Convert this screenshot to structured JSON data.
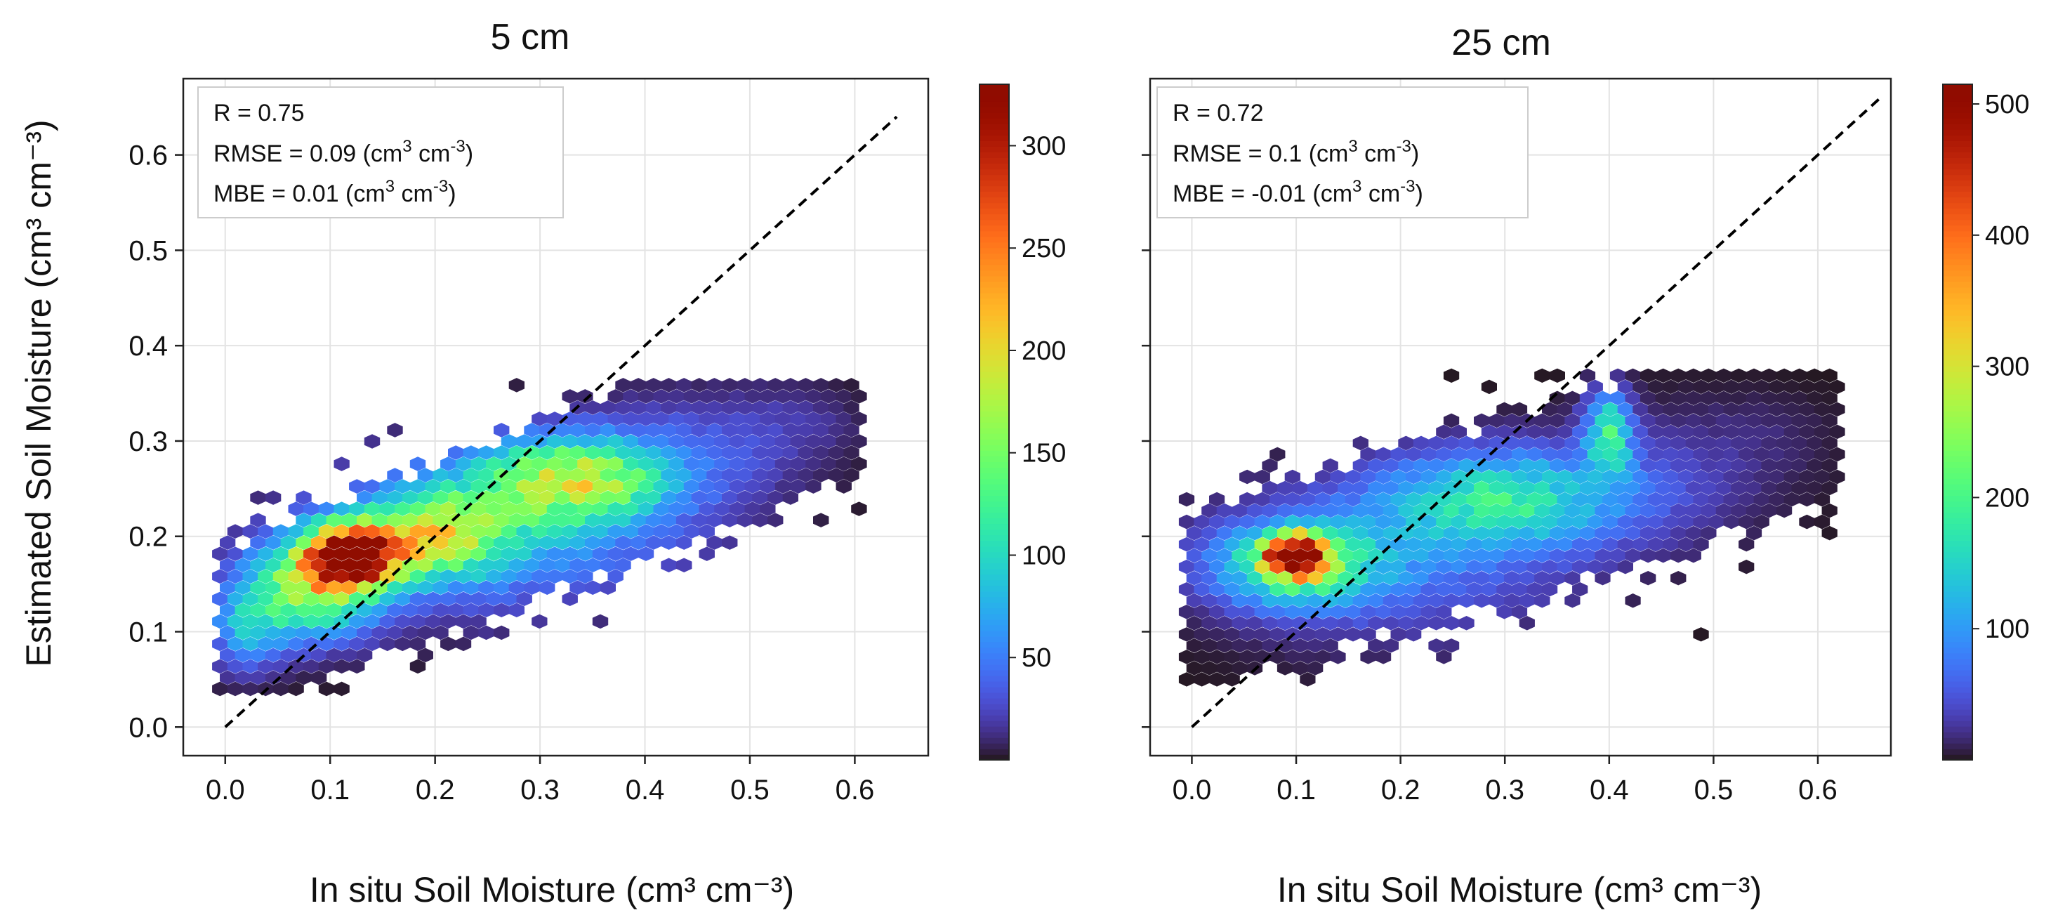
{
  "figure": {
    "ylabel_shared": "Estimated Soil Moisture (cm³ cm⁻³)"
  },
  "chart_data": [
    {
      "type": "heatmap",
      "subtype": "hexbin",
      "title": "5 cm",
      "xlabel": "In situ Soil Moisture (cm³ cm⁻³)",
      "ylabel": "Estimated Soil Moisture (cm³ cm⁻³)",
      "xlim": [
        -0.04,
        0.67
      ],
      "ylim": [
        -0.03,
        0.68
      ],
      "xticks": [
        0.0,
        0.1,
        0.2,
        0.3,
        0.4,
        0.5,
        0.6
      ],
      "yticks": [
        0.0,
        0.1,
        0.2,
        0.3,
        0.4,
        0.5,
        0.6
      ],
      "xtick_labels": [
        "0.0",
        "0.1",
        "0.2",
        "0.3",
        "0.4",
        "0.5",
        "0.6"
      ],
      "ytick_labels": [
        "0.0",
        "0.1",
        "0.2",
        "0.3",
        "0.4",
        "0.5",
        "0.6"
      ],
      "grid": true,
      "one_to_one_line": {
        "from": [
          0.0,
          0.0
        ],
        "to": [
          0.64,
          0.64
        ],
        "style": "dashed",
        "color": "#000000"
      },
      "stats": {
        "r": "R = 0.75",
        "rmse_prefix": "RMSE = 0.09 (cm",
        "mbe_prefix": "MBE = 0.01 (cm",
        "unit_mid": " cm",
        "close": ")",
        "sup3": "3",
        "supm3": "-3"
      },
      "colorbar": {
        "min": 0,
        "max": 330,
        "ticks": [
          50,
          100,
          150,
          200,
          250,
          300
        ],
        "tick_labels": [
          "50",
          "100",
          "150",
          "200",
          "250",
          "300"
        ],
        "colormap": "turbo"
      },
      "density_model": {
        "note": "approximate hexbin counts reconstructed from the image",
        "blobs": [
          {
            "x": 0.12,
            "y": 0.18,
            "sx": 0.03,
            "sy": 0.022,
            "peak": 330
          },
          {
            "x": 0.08,
            "y": 0.145,
            "sx": 0.045,
            "sy": 0.035,
            "peak": 150
          },
          {
            "x": 0.2,
            "y": 0.2,
            "sx": 0.045,
            "sy": 0.03,
            "peak": 140
          },
          {
            "x": 0.33,
            "y": 0.26,
            "sx": 0.06,
            "sy": 0.03,
            "peak": 150
          },
          {
            "x": 0.26,
            "y": 0.21,
            "sx": 0.12,
            "sy": 0.06,
            "peak": 70
          },
          {
            "x": 0.02,
            "y": 0.1,
            "sx": 0.025,
            "sy": 0.03,
            "peak": 60
          },
          {
            "x": 0.45,
            "y": 0.29,
            "sx": 0.07,
            "sy": 0.045,
            "peak": 28
          },
          {
            "x": 0.55,
            "y": 0.32,
            "sx": 0.04,
            "sy": 0.03,
            "peak": 12
          }
        ],
        "domain": {
          "xmin": -0.005,
          "xmax": 0.61,
          "ymin": 0.04,
          "ymax": 0.37
        },
        "ridge_slope": 0.42,
        "ridge_intercept": 0.1,
        "ridge_width": 0.085
      }
    },
    {
      "type": "heatmap",
      "subtype": "hexbin",
      "title": "25 cm",
      "xlabel": "In situ Soil Moisture (cm³ cm⁻³)",
      "ylabel": "",
      "xlim": [
        -0.04,
        0.67
      ],
      "ylim": [
        -0.03,
        0.68
      ],
      "xticks": [
        0.0,
        0.1,
        0.2,
        0.3,
        0.4,
        0.5,
        0.6
      ],
      "yticks": [
        0.0,
        0.1,
        0.2,
        0.3,
        0.4,
        0.5,
        0.6
      ],
      "xtick_labels": [
        "0.0",
        "0.1",
        "0.2",
        "0.3",
        "0.4",
        "0.5",
        "0.6"
      ],
      "ytick_labels": [],
      "grid": true,
      "one_to_one_line": {
        "from": [
          0.0,
          0.0
        ],
        "to": [
          0.66,
          0.66
        ],
        "style": "dashed",
        "color": "#000000"
      },
      "stats": {
        "r": "R = 0.72",
        "rmse_prefix": "RMSE = 0.1 (cm",
        "mbe_prefix": "MBE = -0.01 (cm",
        "unit_mid": " cm",
        "close": ")",
        "sup3": "3",
        "supm3": "-3"
      },
      "colorbar": {
        "min": 0,
        "max": 515,
        "ticks": [
          100,
          200,
          300,
          400,
          500
        ],
        "tick_labels": [
          "100",
          "200",
          "300",
          "400",
          "500"
        ],
        "colormap": "turbo"
      },
      "density_model": {
        "note": "approximate hexbin counts reconstructed from the image",
        "blobs": [
          {
            "x": 0.1,
            "y": 0.18,
            "sx": 0.02,
            "sy": 0.015,
            "peak": 460
          },
          {
            "x": 0.1,
            "y": 0.17,
            "sx": 0.055,
            "sy": 0.03,
            "peak": 180
          },
          {
            "x": 0.3,
            "y": 0.24,
            "sx": 0.08,
            "sy": 0.035,
            "peak": 150
          },
          {
            "x": 0.2,
            "y": 0.18,
            "sx": 0.12,
            "sy": 0.06,
            "peak": 70
          },
          {
            "x": 0.4,
            "y": 0.31,
            "sx": 0.015,
            "sy": 0.03,
            "peak": 170
          },
          {
            "x": 0.45,
            "y": 0.26,
            "sx": 0.08,
            "sy": 0.05,
            "peak": 30
          },
          {
            "x": 0.55,
            "y": 0.31,
            "sx": 0.05,
            "sy": 0.03,
            "peak": 10
          }
        ],
        "domain": {
          "xmin": -0.005,
          "xmax": 0.62,
          "ymin": 0.05,
          "ymax": 0.37
        },
        "ridge_slope": 0.33,
        "ridge_intercept": 0.13,
        "ridge_width": 0.09
      }
    }
  ]
}
